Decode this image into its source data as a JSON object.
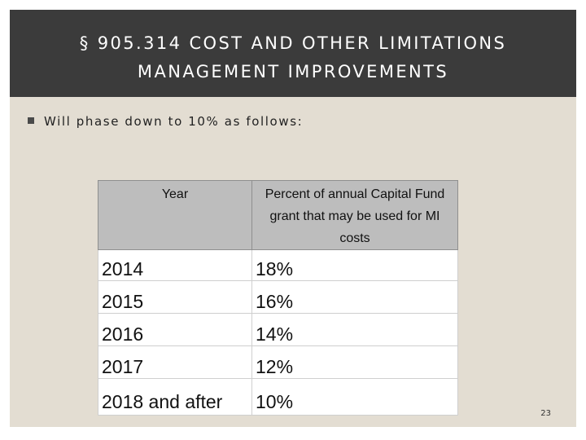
{
  "slide": {
    "title_line1": "§ 905.314 COST AND OTHER LIMITATIONS",
    "title_line2": "MANAGEMENT IMPROVEMENTS",
    "bullet": "Will phase down to 10% as follows:",
    "page_number": "23"
  },
  "table": {
    "headers": [
      "Year",
      "Percent of annual Capital Fund grant that may be used for MI costs"
    ],
    "rows": [
      [
        "2014",
        "18%"
      ],
      [
        "2015",
        "16%"
      ],
      [
        "2016",
        "14%"
      ],
      [
        "2017",
        "12%"
      ],
      [
        "2018 and after",
        "10%"
      ]
    ]
  },
  "colors": {
    "title_bar": "#3b3b3b",
    "slide_background": "#e3ddd2",
    "header_fill": "#bdbdbd"
  }
}
